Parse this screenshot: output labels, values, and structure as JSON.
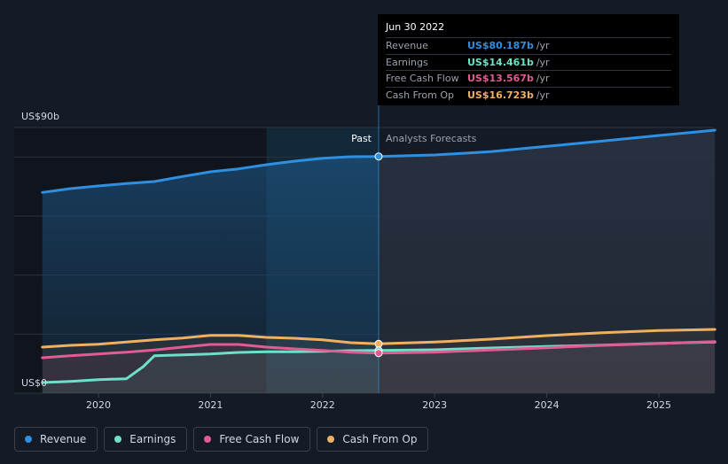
{
  "tooltip": {
    "date": "Jun 30 2022",
    "rows": [
      {
        "label": "Revenue",
        "value": "US$80.187b",
        "unit": "/yr",
        "color": "#2f8fe0"
      },
      {
        "label": "Earnings",
        "value": "US$14.461b",
        "unit": "/yr",
        "color": "#6ee0c8"
      },
      {
        "label": "Free Cash Flow",
        "value": "US$13.567b",
        "unit": "/yr",
        "color": "#e05c93"
      },
      {
        "label": "Cash From Op",
        "value": "US$16.723b",
        "unit": "/yr",
        "color": "#f0b060"
      }
    ]
  },
  "legend": [
    {
      "label": "Revenue",
      "color": "#2f8fe0"
    },
    {
      "label": "Earnings",
      "color": "#6ee0c8"
    },
    {
      "label": "Free Cash Flow",
      "color": "#e05c93"
    },
    {
      "label": "Cash From Op",
      "color": "#f0b060"
    }
  ],
  "chart_data": {
    "type": "line",
    "title": "",
    "ylabel_top": "US$90b",
    "ylabel_bottom": "US$0",
    "ylim": [
      0,
      90
    ],
    "xlim": [
      2019.5,
      2025.5
    ],
    "x_ticks": [
      2020,
      2021,
      2022,
      2023,
      2024,
      2025
    ],
    "x_tick_labels": [
      "2020",
      "2021",
      "2022",
      "2023",
      "2024",
      "2025"
    ],
    "divider_x": 2022.5,
    "past_label": "Past",
    "forecast_label": "Analysts Forecasts",
    "highlight_start": 2021.5,
    "series": [
      {
        "name": "Revenue",
        "color": "#2f8fe0",
        "x": [
          2019.5,
          2019.75,
          2020.0,
          2020.25,
          2020.5,
          2020.75,
          2021.0,
          2021.25,
          2021.5,
          2021.75,
          2022.0,
          2022.25,
          2022.5,
          2023.0,
          2023.5,
          2024.0,
          2024.5,
          2025.0,
          2025.5
        ],
        "y": [
          68.0,
          69.3,
          70.2,
          71.0,
          71.7,
          73.4,
          75.0,
          76.0,
          77.4,
          78.6,
          79.6,
          80.1,
          80.187,
          80.7,
          81.8,
          83.6,
          85.4,
          87.3,
          89.1
        ]
      },
      {
        "name": "Earnings",
        "color": "#6ee0c8",
        "x": [
          2019.5,
          2019.75,
          2020.0,
          2020.25,
          2020.4,
          2020.5,
          2020.75,
          2021.0,
          2021.25,
          2021.5,
          2021.75,
          2022.0,
          2022.25,
          2022.5,
          2023.0,
          2023.5,
          2024.0,
          2024.5,
          2025.0,
          2025.5
        ],
        "y": [
          3.6,
          4.0,
          4.6,
          4.9,
          9.0,
          12.7,
          13.0,
          13.3,
          13.8,
          14.0,
          14.0,
          14.2,
          14.4,
          14.461,
          14.7,
          15.3,
          15.8,
          16.3,
          16.9,
          17.3
        ]
      },
      {
        "name": "Free Cash Flow",
        "color": "#e05c93",
        "x": [
          2019.5,
          2019.75,
          2020.0,
          2020.25,
          2020.5,
          2020.75,
          2021.0,
          2021.25,
          2021.5,
          2021.75,
          2022.0,
          2022.25,
          2022.5,
          2023.0,
          2023.5,
          2024.0,
          2024.5,
          2025.0,
          2025.5
        ],
        "y": [
          12.0,
          12.7,
          13.3,
          13.9,
          14.6,
          15.6,
          16.5,
          16.5,
          15.6,
          15.0,
          14.5,
          13.9,
          13.567,
          13.9,
          14.6,
          15.4,
          16.2,
          16.8,
          17.5
        ]
      },
      {
        "name": "Cash From Op",
        "color": "#f0b060",
        "x": [
          2019.5,
          2019.75,
          2020.0,
          2020.25,
          2020.5,
          2020.75,
          2021.0,
          2021.25,
          2021.5,
          2021.75,
          2022.0,
          2022.25,
          2022.5,
          2023.0,
          2023.5,
          2024.0,
          2024.5,
          2025.0,
          2025.5
        ],
        "y": [
          15.6,
          16.2,
          16.6,
          17.3,
          18.1,
          18.7,
          19.6,
          19.6,
          18.9,
          18.6,
          18.1,
          17.1,
          16.723,
          17.3,
          18.3,
          19.5,
          20.5,
          21.2,
          21.6
        ]
      }
    ],
    "markers": [
      {
        "series": "Revenue",
        "x": 2022.5,
        "y": 80.187
      },
      {
        "series": "Cash From Op",
        "x": 2022.5,
        "y": 16.723
      },
      {
        "series": "Earnings",
        "x": 2022.5,
        "y": 14.461
      },
      {
        "series": "Free Cash Flow",
        "x": 2022.5,
        "y": 13.567
      }
    ]
  }
}
